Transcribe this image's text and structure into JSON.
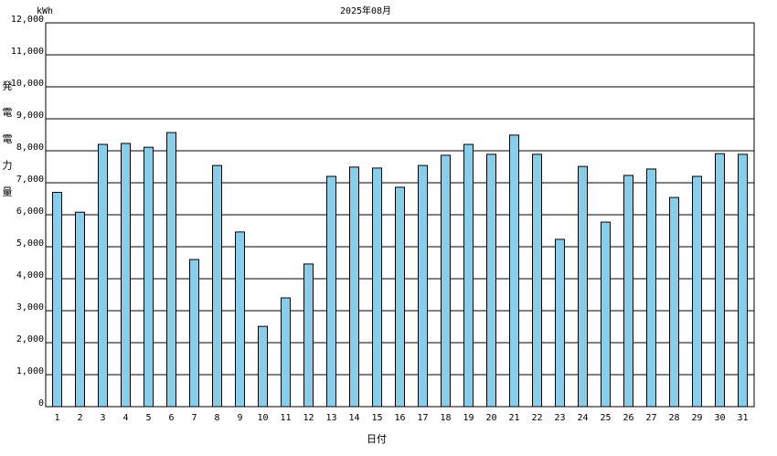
{
  "chart_data": {
    "type": "bar",
    "title": "2025年08月",
    "y_unit": "kWh",
    "y_label": "発電電力量",
    "x_label": "日付",
    "categories": [
      "1",
      "2",
      "3",
      "4",
      "5",
      "6",
      "7",
      "8",
      "9",
      "10",
      "11",
      "12",
      "13",
      "14",
      "15",
      "16",
      "17",
      "18",
      "19",
      "20",
      "21",
      "22",
      "23",
      "24",
      "25",
      "26",
      "27",
      "28",
      "29",
      "30",
      "31"
    ],
    "values": [
      6700,
      6080,
      8200,
      8230,
      8110,
      8570,
      4600,
      7540,
      5460,
      2510,
      3400,
      4460,
      7200,
      7490,
      7460,
      6860,
      7540,
      7860,
      8200,
      7890,
      8490,
      7890,
      5230,
      7510,
      5770,
      7230,
      7430,
      6540,
      7200,
      7910,
      7890
    ],
    "color": "#87ceeb",
    "ylim": [
      0,
      12000
    ],
    "yticks": [
      0,
      {
        "value": 1000,
        "label": "1,000"
      },
      {
        "value": 2000,
        "label": "2,000"
      },
      {
        "value": 3000,
        "label": "3,000"
      },
      {
        "value": 4000,
        "label": "4,000"
      },
      {
        "value": 5000,
        "label": "5,000"
      },
      {
        "value": 6000,
        "label": "6,000"
      },
      {
        "value": 7000,
        "label": "7,000"
      },
      {
        "value": 8000,
        "label": "8,000"
      },
      {
        "value": 9000,
        "label": "9,000"
      },
      {
        "value": 10000,
        "label": "10,000"
      },
      {
        "value": 11000,
        "label": "11,000"
      },
      {
        "value": 12000,
        "label": "12,000"
      }
    ],
    "grid": true
  }
}
